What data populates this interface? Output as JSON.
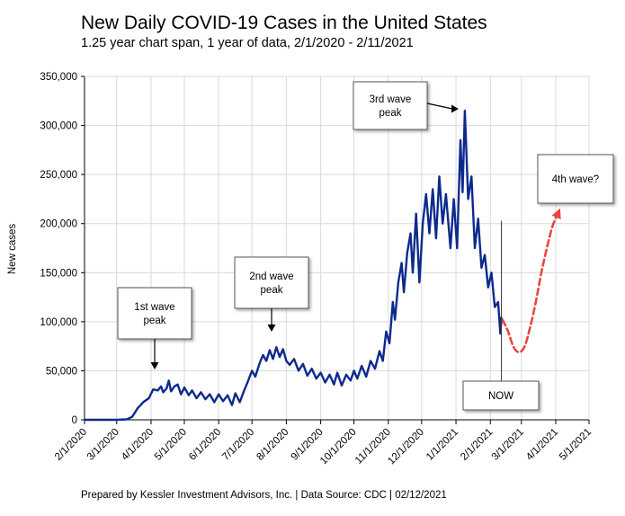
{
  "header": {
    "title": "New Daily COVID-19 Cases in the United States",
    "subtitle": "1.25 year chart span, 1 year of data, 2/1/2020 - 2/11/2021"
  },
  "footer": {
    "text": "Prepared by Kessler Investment Advisors, Inc. | Data Source: CDC | 02/12/2021"
  },
  "chart_data": {
    "type": "line",
    "title": "New Daily COVID-19 Cases in the United States",
    "subtitle": "1.25 year chart span, 1 year of data, 2/1/2020 - 2/11/2021",
    "xlabel": "",
    "ylabel": "New cases",
    "xlim": [
      "2020-02-01",
      "2021-05-01"
    ],
    "ylim": [
      0,
      350000
    ],
    "grid": true,
    "legend": "none",
    "x_ticks": [
      "2/1/2020",
      "3/1/2020",
      "4/1/2020",
      "5/1/2020",
      "6/1/2020",
      "7/1/2020",
      "8/1/2020",
      "9/1/2020",
      "10/1/2020",
      "11/1/2020",
      "12/1/2020",
      "1/1/2021",
      "2/1/2021",
      "3/1/2021",
      "4/1/2021",
      "5/1/2021"
    ],
    "y_ticks": [
      "0",
      "50,000",
      "100,000",
      "150,000",
      "200,000",
      "250,000",
      "300,000",
      "350,000"
    ],
    "colors": {
      "actual": "#0d2a8c",
      "projection": "#e8473f",
      "grid": "#d9d9d9"
    },
    "series": [
      {
        "style": "solid",
        "points": [
          [
            "2020-02-01",
            0
          ],
          [
            "2020-03-01",
            0
          ],
          [
            "2020-03-10",
            500
          ],
          [
            "2020-03-15",
            3000
          ],
          [
            "2020-03-20",
            12000
          ],
          [
            "2020-03-25",
            18000
          ],
          [
            "2020-03-30",
            22000
          ],
          [
            "2020-04-03",
            31000
          ],
          [
            "2020-04-07",
            30000
          ],
          [
            "2020-04-10",
            34000
          ],
          [
            "2020-04-12",
            28000
          ],
          [
            "2020-04-15",
            32000
          ],
          [
            "2020-04-17",
            40000
          ],
          [
            "2020-04-19",
            29000
          ],
          [
            "2020-04-22",
            34000
          ],
          [
            "2020-04-25",
            36000
          ],
          [
            "2020-04-28",
            26000
          ],
          [
            "2020-05-01",
            33000
          ],
          [
            "2020-05-05",
            25000
          ],
          [
            "2020-05-08",
            30000
          ],
          [
            "2020-05-12",
            22000
          ],
          [
            "2020-05-16",
            28000
          ],
          [
            "2020-05-20",
            21000
          ],
          [
            "2020-05-24",
            26000
          ],
          [
            "2020-05-28",
            18000
          ],
          [
            "2020-06-01",
            26000
          ],
          [
            "2020-06-05",
            19000
          ],
          [
            "2020-06-09",
            25000
          ],
          [
            "2020-06-13",
            15000
          ],
          [
            "2020-06-16",
            27000
          ],
          [
            "2020-06-20",
            18000
          ],
          [
            "2020-06-24",
            30000
          ],
          [
            "2020-06-27",
            38000
          ],
          [
            "2020-07-01",
            50000
          ],
          [
            "2020-07-04",
            44000
          ],
          [
            "2020-07-08",
            58000
          ],
          [
            "2020-07-11",
            66000
          ],
          [
            "2020-07-14",
            60000
          ],
          [
            "2020-07-17",
            71000
          ],
          [
            "2020-07-20",
            62000
          ],
          [
            "2020-07-23",
            74000
          ],
          [
            "2020-07-26",
            64000
          ],
          [
            "2020-07-29",
            72000
          ],
          [
            "2020-08-01",
            60000
          ],
          [
            "2020-08-04",
            56000
          ],
          [
            "2020-08-08",
            62000
          ],
          [
            "2020-08-12",
            50000
          ],
          [
            "2020-08-16",
            57000
          ],
          [
            "2020-08-20",
            45000
          ],
          [
            "2020-08-24",
            52000
          ],
          [
            "2020-08-28",
            42000
          ],
          [
            "2020-09-01",
            48000
          ],
          [
            "2020-09-05",
            38000
          ],
          [
            "2020-09-09",
            46000
          ],
          [
            "2020-09-13",
            36000
          ],
          [
            "2020-09-16",
            48000
          ],
          [
            "2020-09-20",
            35000
          ],
          [
            "2020-09-24",
            46000
          ],
          [
            "2020-09-28",
            40000
          ],
          [
            "2020-10-01",
            50000
          ],
          [
            "2020-10-04",
            42000
          ],
          [
            "2020-10-08",
            55000
          ],
          [
            "2020-10-12",
            44000
          ],
          [
            "2020-10-16",
            60000
          ],
          [
            "2020-10-20",
            52000
          ],
          [
            "2020-10-24",
            70000
          ],
          [
            "2020-10-27",
            60000
          ],
          [
            "2020-10-30",
            90000
          ],
          [
            "2020-11-02",
            78000
          ],
          [
            "2020-11-05",
            120000
          ],
          [
            "2020-11-07",
            102000
          ],
          [
            "2020-11-10",
            140000
          ],
          [
            "2020-11-13",
            160000
          ],
          [
            "2020-11-15",
            130000
          ],
          [
            "2020-11-18",
            170000
          ],
          [
            "2020-11-21",
            190000
          ],
          [
            "2020-11-23",
            150000
          ],
          [
            "2020-11-26",
            210000
          ],
          [
            "2020-11-29",
            140000
          ],
          [
            "2020-12-02",
            200000
          ],
          [
            "2020-12-05",
            230000
          ],
          [
            "2020-12-08",
            190000
          ],
          [
            "2020-12-11",
            235000
          ],
          [
            "2020-12-14",
            185000
          ],
          [
            "2020-12-17",
            248000
          ],
          [
            "2020-12-20",
            200000
          ],
          [
            "2020-12-23",
            230000
          ],
          [
            "2020-12-27",
            175000
          ],
          [
            "2020-12-30",
            225000
          ],
          [
            "2021-01-02",
            175000
          ],
          [
            "2021-01-05",
            285000
          ],
          [
            "2021-01-07",
            232000
          ],
          [
            "2021-01-09",
            315000
          ],
          [
            "2021-01-12",
            225000
          ],
          [
            "2021-01-15",
            248000
          ],
          [
            "2021-01-18",
            175000
          ],
          [
            "2021-01-21",
            205000
          ],
          [
            "2021-01-24",
            155000
          ],
          [
            "2021-01-27",
            168000
          ],
          [
            "2021-01-30",
            135000
          ],
          [
            "2021-02-02",
            150000
          ],
          [
            "2021-02-05",
            115000
          ],
          [
            "2021-02-08",
            120000
          ],
          [
            "2021-02-10",
            88000
          ],
          [
            "2021-02-11",
            104000
          ]
        ]
      },
      {
        "style": "dashed",
        "points": [
          [
            "2021-02-12",
            102000
          ],
          [
            "2021-02-17",
            90000
          ],
          [
            "2021-02-22",
            74000
          ],
          [
            "2021-02-27",
            69000
          ],
          [
            "2021-03-04",
            75000
          ],
          [
            "2021-03-09",
            95000
          ],
          [
            "2021-03-14",
            120000
          ],
          [
            "2021-03-19",
            150000
          ],
          [
            "2021-03-24",
            175000
          ],
          [
            "2021-03-29",
            197000
          ],
          [
            "2021-04-04",
            213000
          ]
        ]
      }
    ],
    "annotations": [
      {
        "label_lines": [
          "1st wave",
          "peak"
        ],
        "target": [
          "2020-04-17",
          40000
        ]
      },
      {
        "label_lines": [
          "2nd wave",
          "peak"
        ],
        "target": [
          "2020-07-23",
          74000
        ]
      },
      {
        "label_lines": [
          "3rd wave",
          "peak"
        ],
        "target": [
          "2021-01-09",
          315000
        ]
      },
      {
        "label_lines": [
          "4th wave?"
        ]
      },
      {
        "label_lines": [
          "NOW"
        ],
        "marker_x": "2021-02-11",
        "marker_y": 203000
      }
    ]
  }
}
